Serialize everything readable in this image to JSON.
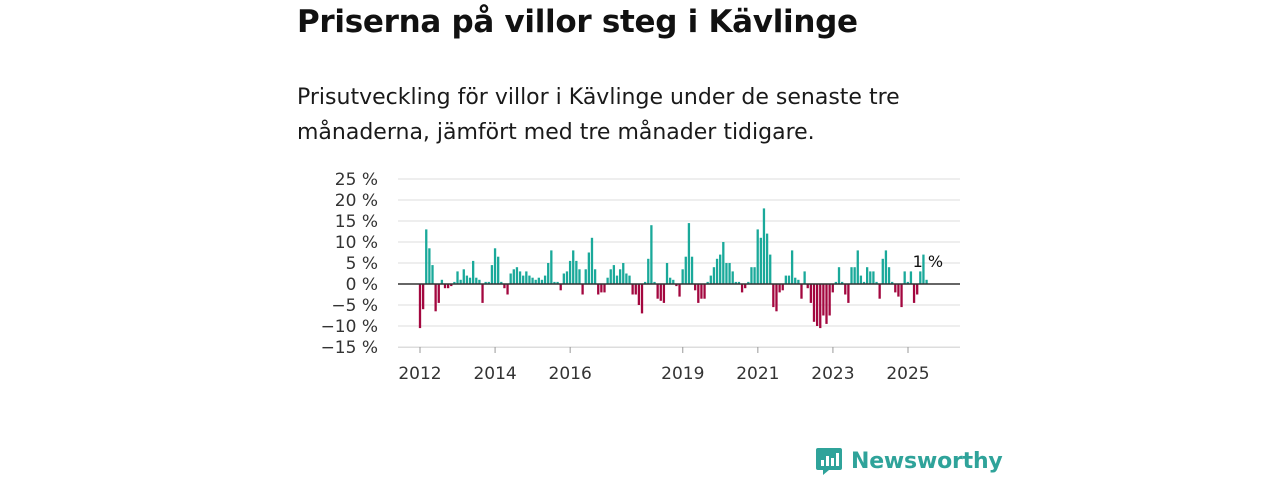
{
  "title": "Priserna på villor steg i Kävlinge",
  "subtitle": "Prisutveckling för villor i Kävlinge under de senaste tre månaderna, jämfört med tre månader tidigare.",
  "brand": {
    "name": "Newsworthy"
  },
  "colors": {
    "positive": "#1aa99a",
    "negative": "#a3073f",
    "grid": "#dddddd",
    "baseline": "#333333"
  },
  "chart_data": {
    "type": "bar",
    "title": "Priserna på villor steg i Kävlinge",
    "ylabel": "",
    "xlabel": "",
    "ylim": [
      -15,
      25
    ],
    "y_ticks": [
      25,
      20,
      15,
      10,
      5,
      0,
      -5,
      -10,
      -15
    ],
    "y_tick_labels": [
      "25 %",
      "20 %",
      "15 %",
      "10 %",
      "5 %",
      "0 %",
      "−5 %",
      "−10 %",
      "−15 %"
    ],
    "x_start": 2012.0,
    "x_step": 0.0833,
    "x_ticks": [
      2012,
      2014,
      2016,
      2019,
      2021,
      2023,
      2025
    ],
    "x_tick_labels": [
      "2012",
      "2014",
      "2016",
      "2019",
      "2021",
      "2023",
      "2025"
    ],
    "end_label": "1 %",
    "values": [
      -10.5,
      -6,
      13,
      8.5,
      4.5,
      -6.5,
      -4.5,
      1,
      -1,
      -1,
      -0.5,
      0.5,
      3,
      1,
      3.5,
      2,
      1.5,
      5.5,
      1.5,
      1,
      -4.5,
      0.5,
      0.5,
      4.5,
      8.5,
      6.5,
      0.5,
      -1,
      -2.5,
      2.5,
      3.5,
      4,
      3,
      2,
      3,
      2,
      1.5,
      1,
      1.5,
      1,
      2,
      5,
      8,
      0.5,
      0.5,
      -1.5,
      2.5,
      3,
      5.5,
      8,
      5.5,
      3.5,
      -2.5,
      3.5,
      7.5,
      11,
      3.5,
      -2.5,
      -2,
      -2,
      1.5,
      3.5,
      4.5,
      2,
      3.5,
      5,
      2.5,
      2,
      -2.5,
      -2.5,
      -5,
      -7,
      0.5,
      6,
      14,
      0.5,
      -3.5,
      -4,
      -4.5,
      5,
      1.5,
      1,
      -0.5,
      -3,
      3.5,
      6.5,
      14.5,
      6.5,
      -1.5,
      -4.5,
      -3.5,
      -3.5,
      0.5,
      2,
      4,
      6,
      7,
      10,
      5,
      5,
      3,
      0.5,
      0.5,
      -2,
      -1,
      0.5,
      4,
      4,
      13,
      11,
      18,
      12,
      7,
      -5.5,
      -6.5,
      -2,
      -1.5,
      2,
      2,
      8,
      1.5,
      1,
      -3.5,
      3,
      -1,
      -4.5,
      -9,
      -10,
      -10.5,
      -7.5,
      -9.5,
      -7.5,
      -2,
      0.5,
      4,
      0.5,
      -2.5,
      -4.5,
      4,
      4,
      8,
      2,
      0.5,
      4,
      3,
      3,
      0.5,
      -3.5,
      6,
      8,
      4,
      0.5,
      -2,
      -3,
      -5.5,
      3,
      0.5,
      3,
      -4.5,
      -2.5,
      3,
      7,
      1
    ]
  }
}
